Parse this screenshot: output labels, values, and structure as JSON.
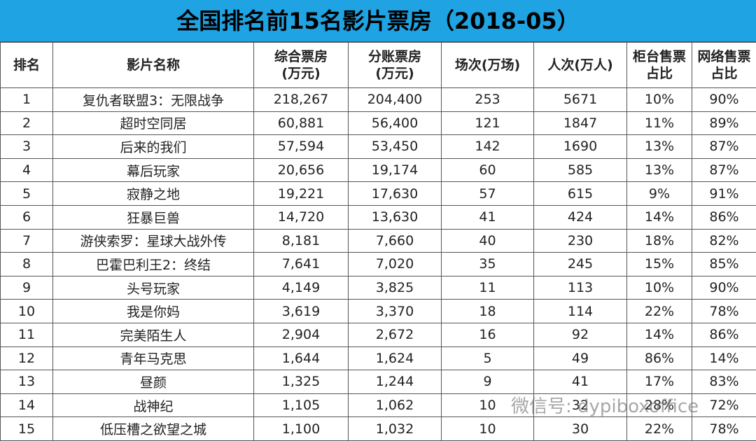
{
  "title": "全国排名前15名影片票房（2018-05）",
  "table": {
    "headers": [
      [
        "排名"
      ],
      [
        "影片名称"
      ],
      [
        "综合票房",
        "(万元)"
      ],
      [
        "分账票房",
        "(万元)"
      ],
      [
        "场次(万场)"
      ],
      [
        "人次(万人)"
      ],
      [
        "柜台售票",
        "占比"
      ],
      [
        "网络售票",
        "占比"
      ]
    ],
    "rows": [
      [
        "1",
        "复仇者联盟3：无限战争",
        "218,267",
        "204,400",
        "253",
        "5671",
        "10%",
        "90%"
      ],
      [
        "2",
        "超时空同居",
        "60,881",
        "56,400",
        "121",
        "1847",
        "11%",
        "89%"
      ],
      [
        "3",
        "后来的我们",
        "57,594",
        "53,450",
        "142",
        "1690",
        "13%",
        "87%"
      ],
      [
        "4",
        "幕后玩家",
        "20,656",
        "19,174",
        "60",
        "585",
        "13%",
        "87%"
      ],
      [
        "5",
        "寂静之地",
        "19,221",
        "17,630",
        "57",
        "615",
        "9%",
        "91%"
      ],
      [
        "6",
        "狂暴巨兽",
        "14,720",
        "13,630",
        "41",
        "424",
        "14%",
        "86%"
      ],
      [
        "7",
        "游侠索罗：星球大战外传",
        "8,181",
        "7,660",
        "40",
        "230",
        "18%",
        "82%"
      ],
      [
        "8",
        "巴霍巴利王2：终结",
        "7,641",
        "7,020",
        "35",
        "245",
        "15%",
        "85%"
      ],
      [
        "9",
        "头号玩家",
        "4,149",
        "3,825",
        "11",
        "113",
        "10%",
        "90%"
      ],
      [
        "10",
        "我是你妈",
        "3,619",
        "3,370",
        "18",
        "114",
        "22%",
        "78%"
      ],
      [
        "11",
        "完美陌生人",
        "2,904",
        "2,672",
        "16",
        "92",
        "14%",
        "86%"
      ],
      [
        "12",
        "青年马克思",
        "1,644",
        "1,624",
        "5",
        "49",
        "86%",
        "14%"
      ],
      [
        "13",
        "昼颜",
        "1,325",
        "1,244",
        "9",
        "41",
        "17%",
        "83%"
      ],
      [
        "14",
        "战神纪",
        "1,105",
        "1,062",
        "10",
        "32",
        "28%",
        "72%"
      ],
      [
        "15",
        "低压槽之欲望之城",
        "1,100",
        "1,032",
        "10",
        "30",
        "22%",
        "78%"
      ]
    ]
  },
  "watermark": "微信号: dypiboxoffice"
}
